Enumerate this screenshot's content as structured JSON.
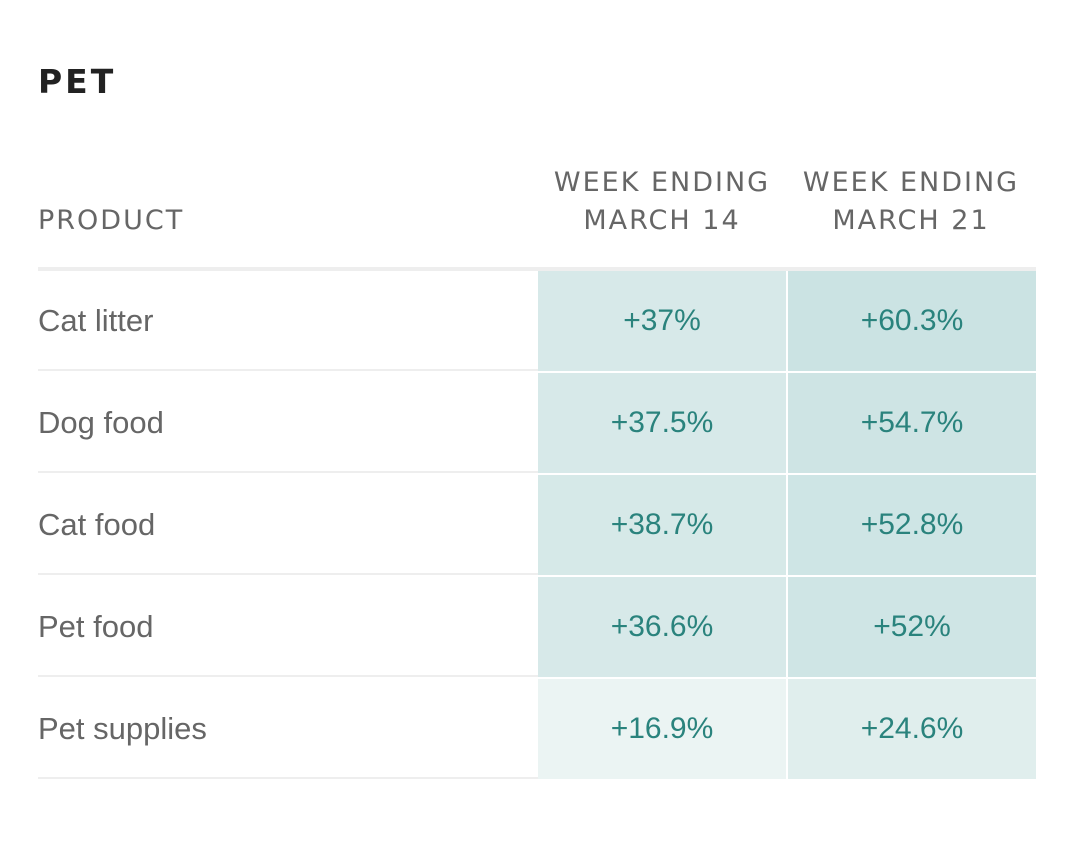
{
  "title": "PET",
  "chart_data": {
    "type": "table",
    "title": "PET",
    "columns": [
      "PRODUCT",
      "WEEK ENDING MARCH 14",
      "WEEK ENDING MARCH 21"
    ],
    "headers": {
      "product": "PRODUCT",
      "col1_line1": "WEEK ENDING",
      "col1_line2": "MARCH 14",
      "col2_line1": "WEEK ENDING",
      "col2_line2": "MARCH 21"
    },
    "rows": [
      {
        "product": "Cat litter",
        "march14": "+37%",
        "march21": "+60.3%"
      },
      {
        "product": "Dog food",
        "march14": "+37.5%",
        "march21": "+54.7%"
      },
      {
        "product": "Cat food",
        "march14": "+38.7%",
        "march21": "+52.8%"
      },
      {
        "product": "Pet food",
        "march14": "+36.6%",
        "march21": "+52%"
      },
      {
        "product": "Pet supplies",
        "march14": "+16.9%",
        "march21": "+24.6%"
      }
    ],
    "values_march14": [
      37,
      37.5,
      38.7,
      36.6,
      16.9
    ],
    "values_march21": [
      60.3,
      54.7,
      52.8,
      52,
      24.6
    ]
  },
  "colors": {
    "value_text": "#2a837d",
    "heat_low": "#ebf4f3",
    "heat_high": "#cbe3e3",
    "rule": "#eeeeee"
  }
}
